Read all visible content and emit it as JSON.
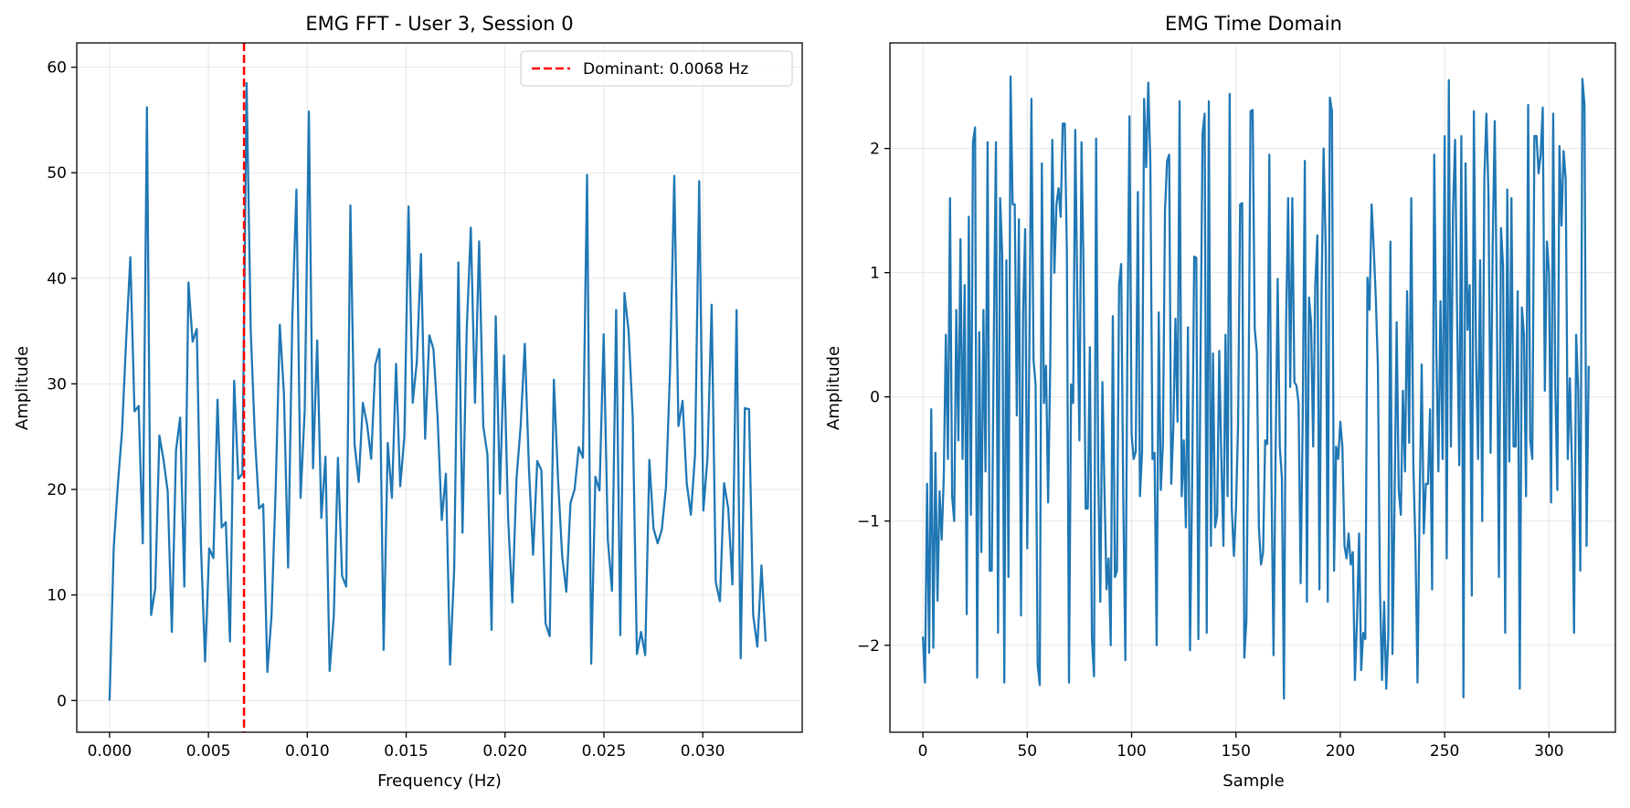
{
  "figure": {
    "background": "#ffffff"
  },
  "chart_data": [
    {
      "type": "line",
      "title": "EMG FFT - User 3, Session 0",
      "xlabel": "Frequency (Hz)",
      "ylabel": "Amplitude",
      "xlim": [
        -0.00166,
        0.03503
      ],
      "ylim": [
        -3.0,
        62.3
      ],
      "xticks": [
        0.0,
        0.005,
        0.01,
        0.015,
        0.02,
        0.025,
        0.03
      ],
      "xtick_labels": [
        "0.000",
        "0.005",
        "0.010",
        "0.015",
        "0.020",
        "0.025",
        "0.030"
      ],
      "yticks": [
        0,
        10,
        20,
        30,
        40,
        50,
        60
      ],
      "ytick_labels": [
        "0",
        "10",
        "20",
        "30",
        "40",
        "50",
        "60"
      ],
      "grid": true,
      "legend_position": "top-right",
      "line_color": "#1f77b4",
      "series": [
        {
          "x": [
            0,
            0.00021,
            0.00042,
            0.00063,
            0.00084,
            0.00105,
            0.00126,
            0.00147,
            0.00168,
            0.00189,
            0.0021,
            0.00231,
            0.00252,
            0.00273,
            0.00294,
            0.00315,
            0.00336,
            0.00357,
            0.00378,
            0.00399,
            0.0042,
            0.00441,
            0.00462,
            0.00483,
            0.00504,
            0.00525,
            0.00546,
            0.00567,
            0.00588,
            0.00609,
            0.0063,
            0.00651,
            0.00672,
            0.00693,
            0.00714,
            0.00735,
            0.00756,
            0.00777,
            0.00798,
            0.00819,
            0.0084,
            0.00861,
            0.00882,
            0.00903,
            0.00924,
            0.00945,
            0.00966,
            0.00987,
            0.01008,
            0.01029,
            0.0105,
            0.01071,
            0.01092,
            0.01113,
            0.01134,
            0.01155,
            0.01176,
            0.01197,
            0.01218,
            0.01239,
            0.0126,
            0.01281,
            0.01302,
            0.01323,
            0.01344,
            0.01365,
            0.01386,
            0.01407,
            0.01428,
            0.01449,
            0.0147,
            0.01491,
            0.01512,
            0.01533,
            0.01554,
            0.01575,
            0.01596,
            0.01617,
            0.01638,
            0.01659,
            0.0168,
            0.01701,
            0.01722,
            0.01743,
            0.01764,
            0.01785,
            0.01806,
            0.01827,
            0.01848,
            0.01869,
            0.0189,
            0.01911,
            0.01932,
            0.01953,
            0.01974,
            0.01995,
            0.02016,
            0.02037,
            0.02058,
            0.02079,
            0.021,
            0.02121,
            0.02142,
            0.02163,
            0.02184,
            0.02205,
            0.02226,
            0.02247,
            0.02268,
            0.02289,
            0.0231,
            0.02331,
            0.02352,
            0.02373,
            0.02394,
            0.02415,
            0.02436,
            0.02457,
            0.02478,
            0.02499,
            0.0252,
            0.02541,
            0.02562,
            0.02583,
            0.02604,
            0.02625,
            0.02646,
            0.02667,
            0.02688,
            0.02709,
            0.0273,
            0.02751,
            0.02772,
            0.02793,
            0.02814,
            0.02835,
            0.02856,
            0.02877,
            0.02898,
            0.02919,
            0.0294,
            0.02961,
            0.02982,
            0.03003,
            0.03024,
            0.03045,
            0.03066,
            0.03087,
            0.03108,
            0.03129,
            0.0315,
            0.03171,
            0.03192,
            0.03213,
            0.03234,
            0.03255,
            0.03276,
            0.03297,
            0.03318
          ],
          "values": [
            0.0,
            14.5,
            20.5,
            25.5,
            34.2,
            42.0,
            27.4,
            27.9,
            14.9,
            56.2,
            8.1,
            10.6,
            25.1,
            22.8,
            19.8,
            6.5,
            23.7,
            26.8,
            10.8,
            39.6,
            34.0,
            35.2,
            14.8,
            3.7,
            14.4,
            13.5,
            28.5,
            16.4,
            16.9,
            5.6,
            30.3,
            21.0,
            21.5,
            58.5,
            35.0,
            25.0,
            18.2,
            18.6,
            2.7,
            8.0,
            20.0,
            35.6,
            29.0,
            12.6,
            36.0,
            48.4,
            19.2,
            27.5,
            55.8,
            22.0,
            34.1,
            17.3,
            23.1,
            2.8,
            8.0,
            23.0,
            11.8,
            10.8,
            46.9,
            24.3,
            20.7,
            28.2,
            26.2,
            22.9,
            31.8,
            33.3,
            4.8,
            24.4,
            19.2,
            31.9,
            20.3,
            25.0,
            46.8,
            28.2,
            32.1,
            42.3,
            24.8,
            34.6,
            33.3,
            26.8,
            17.1,
            21.5,
            3.4,
            12.5,
            41.5,
            15.9,
            35.0,
            44.8,
            28.2,
            43.5,
            26.0,
            23.3,
            6.7,
            36.4,
            19.6,
            32.7,
            17.1,
            9.3,
            21.0,
            26.0,
            33.8,
            22.0,
            13.8,
            22.7,
            21.8,
            7.3,
            6.1,
            30.4,
            21.0,
            13.7,
            10.3,
            18.7,
            20.0,
            24.0,
            23.0,
            49.8,
            3.5,
            21.2,
            19.9,
            34.7,
            15.2,
            10.4,
            37.0,
            6.2,
            38.6,
            35.0,
            26.8,
            4.4,
            6.5,
            4.3,
            22.8,
            16.3,
            14.9,
            16.2,
            20.2,
            31.5,
            49.7,
            26.0,
            28.4,
            20.6,
            17.6,
            23.3,
            49.2,
            18.0,
            23.0,
            37.5,
            11.2,
            9.4,
            20.6,
            18.2,
            11.0,
            37.0,
            4.0,
            27.7,
            27.6,
            8.1,
            5.1,
            12.8,
            5.6
          ]
        }
      ],
      "annotations": [
        {
          "kind": "vline",
          "x": 0.0068,
          "color": "#ff0000",
          "label": "Dominant: 0.0068 Hz"
        }
      ]
    },
    {
      "type": "line",
      "title": "EMG Time Domain",
      "xlabel": "Sample",
      "ylabel": "Amplitude",
      "xlim": [
        -15.8,
        331.8
      ],
      "ylim": [
        -2.7,
        2.85
      ],
      "xticks": [
        0,
        50,
        100,
        150,
        200,
        250,
        300
      ],
      "xtick_labels": [
        "0",
        "50",
        "100",
        "150",
        "200",
        "250",
        "300"
      ],
      "yticks": [
        -2,
        -1,
        0,
        1,
        2
      ],
      "ytick_labels": [
        "−2",
        "−1",
        "0",
        "1",
        "2"
      ],
      "grid": true,
      "line_color": "#1f77b4",
      "series": [
        {
          "x_start": 0,
          "x_step": 1,
          "values": [
            -1.93,
            -2.3,
            -0.7,
            -2.06,
            -0.1,
            -2.02,
            -0.45,
            -1.64,
            -0.76,
            -1.15,
            -0.65,
            0.5,
            -0.5,
            1.6,
            -0.8,
            -1.0,
            0.7,
            -0.35,
            1.27,
            -0.5,
            0.9,
            -1.75,
            1.45,
            -0.95,
            2.05,
            2.17,
            -2.26,
            0.52,
            -1.25,
            0.7,
            -0.6,
            2.05,
            -1.4,
            -1.4,
            0.5,
            2.05,
            -1.9,
            1.6,
            1.15,
            -2.3,
            1.1,
            -1.45,
            2.58,
            1.55,
            1.55,
            -0.15,
            1.43,
            -1.76,
            0.68,
            1.35,
            -1.22,
            0.35,
            2.4,
            0.3,
            0.1,
            -2.16,
            -2.32,
            1.88,
            -0.05,
            0.25,
            -0.85,
            0.24,
            2.07,
            1.0,
            1.55,
            1.68,
            1.45,
            2.2,
            2.2,
            1.15,
            -2.3,
            0.1,
            -0.05,
            2.15,
            0.8,
            -0.35,
            2.05,
            1.0,
            -0.9,
            -0.9,
            0.4,
            -1.95,
            -2.25,
            2.08,
            -0.6,
            -1.65,
            0.12,
            -0.75,
            -1.55,
            -1.3,
            -2.0,
            0.65,
            -1.45,
            -1.4,
            0.9,
            1.07,
            -0.8,
            -2.12,
            0.48,
            2.26,
            -0.3,
            -0.5,
            -0.44,
            1.65,
            -0.8,
            -0.45,
            2.4,
            1.85,
            2.53,
            1.86,
            -0.5,
            -0.45,
            -2.0,
            0.68,
            -0.75,
            -0.38,
            1.5,
            1.9,
            1.95,
            -0.7,
            -0.25,
            0.63,
            -0.2,
            2.38,
            -0.8,
            -0.35,
            -1.05,
            0.56,
            -2.04,
            -0.7,
            1.13,
            1.12,
            -1.95,
            0.28,
            2.12,
            2.28,
            -1.9,
            2.38,
            -1.2,
            0.35,
            -1.05,
            -0.95,
            0.37,
            -0.5,
            -1.2,
            0.5,
            -0.8,
            2.44,
            -0.9,
            -1.28,
            -0.9,
            -0.25,
            1.55,
            1.56,
            -2.1,
            -1.8,
            -0.07,
            2.3,
            2.31,
            0.55,
            0.36,
            -1.05,
            -1.35,
            -1.25,
            -0.35,
            -0.38,
            1.95,
            -0.65,
            -2.08,
            -0.45,
            0.95,
            -0.4,
            -0.65,
            -2.43,
            0.55,
            1.6,
            0.08,
            1.6,
            0.12,
            0.09,
            -0.05,
            -1.5,
            -0.15,
            1.9,
            -1.65,
            0.8,
            0.6,
            -0.4,
            0.9,
            1.3,
            -1.55,
            0.8,
            2.0,
            1.2,
            -1.65,
            2.41,
            2.3,
            -1.4,
            -0.4,
            -0.5,
            -0.2,
            -0.4,
            -1.2,
            -1.3,
            -1.1,
            -1.35,
            -1.25,
            -2.28,
            -1.8,
            -1.1,
            -2.2,
            -1.9,
            -1.95,
            0.96,
            0.7,
            1.55,
            1.2,
            0.8,
            0.25,
            -1.55,
            -2.28,
            -1.65,
            -2.35,
            -1.92,
            1.25,
            -2.07,
            -0.85,
            0.6,
            -0.75,
            -0.95,
            0.05,
            -0.6,
            0.85,
            -0.37,
            1.6,
            -0.55,
            -1.2,
            -2.3,
            -0.85,
            0.26,
            -1.1,
            -0.7,
            -0.7,
            -0.1,
            -1.55,
            1.95,
            0.4,
            -0.6,
            0.77,
            -0.5,
            2.1,
            -1.3,
            2.55,
            -0.4,
            1.5,
            2.07,
            0.6,
            -0.55,
            2.1,
            -2.42,
            1.88,
            0.54,
            0.9,
            -1.6,
            2.3,
            0.4,
            -0.5,
            1.1,
            -1.0,
            1.75,
            2.28,
            1.62,
            -0.45,
            1.2,
            2.22,
            0.75,
            -1.45,
            1.36,
            1.05,
            -1.9,
            1.67,
            -0.52,
            1.6,
            -0.4,
            -0.4,
            0.85,
            -2.35,
            0.72,
            0.5,
            -0.8,
            2.35,
            -0.35,
            -0.5,
            2.1,
            2.1,
            1.8,
            1.95,
            2.33,
            0.05,
            1.25,
            1.0,
            -0.85,
            2.28,
            0.1,
            -0.75,
            2.02,
            1.38,
            1.98,
            1.75,
            -0.5,
            0.15,
            -0.55,
            -1.9,
            0.5,
            0.05,
            -1.4,
            2.56,
            2.35,
            -1.2,
            0.25
          ]
        }
      ]
    }
  ]
}
